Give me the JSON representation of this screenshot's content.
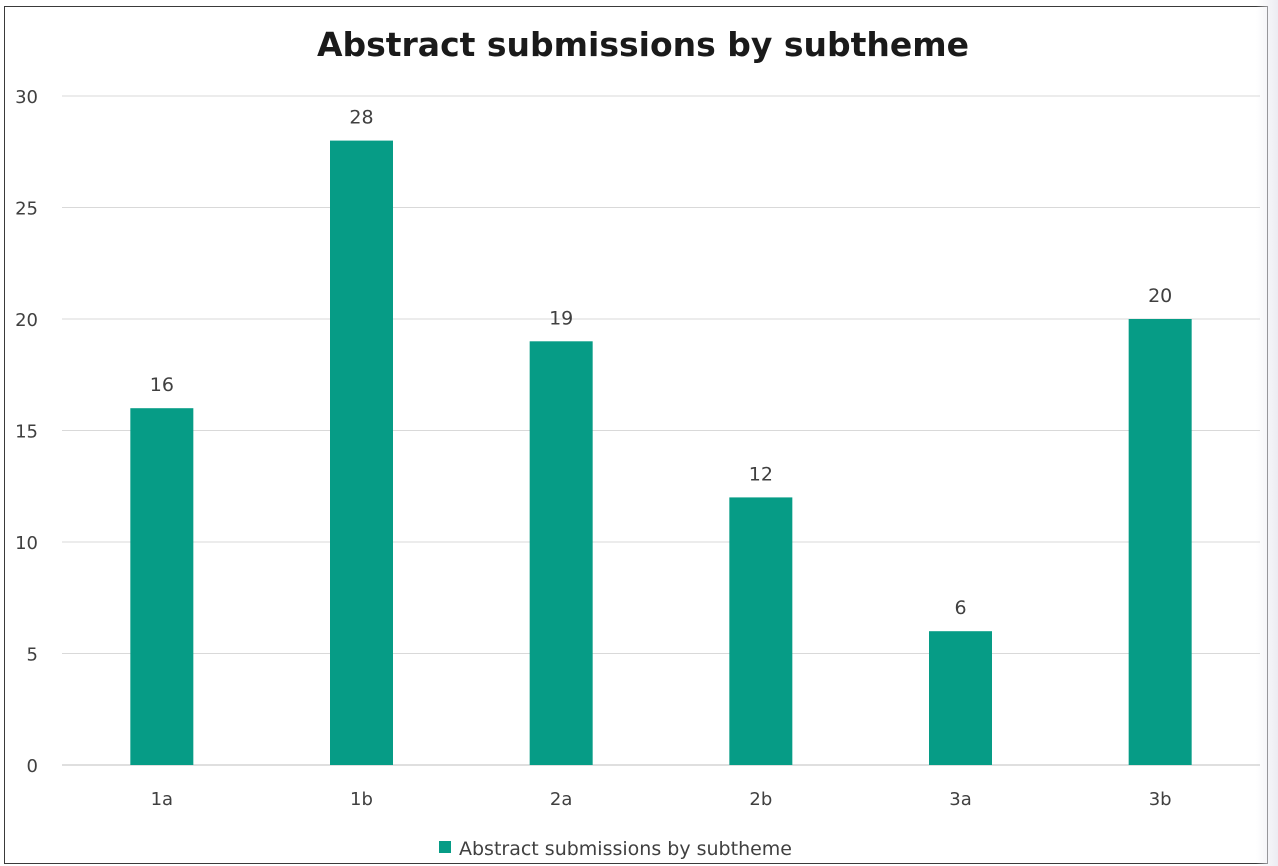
{
  "chart_data": {
    "type": "bar",
    "title": "Abstract submissions by subtheme",
    "xlabel": "",
    "ylabel": "",
    "categories": [
      "1a",
      "1b",
      "2a",
      "2b",
      "3a",
      "3b"
    ],
    "series": [
      {
        "name": "Abstract submissions by subtheme",
        "values": [
          16,
          28,
          19,
          12,
          6,
          20
        ],
        "color": "#069c86"
      }
    ],
    "ylim": [
      0,
      30
    ],
    "yticks": [
      "0",
      "5",
      "10",
      "15",
      "20",
      "25",
      "30"
    ],
    "grid": true,
    "legend": "bottom",
    "data_labels": [
      "16",
      "28",
      "19",
      "12",
      "6",
      "20"
    ]
  }
}
